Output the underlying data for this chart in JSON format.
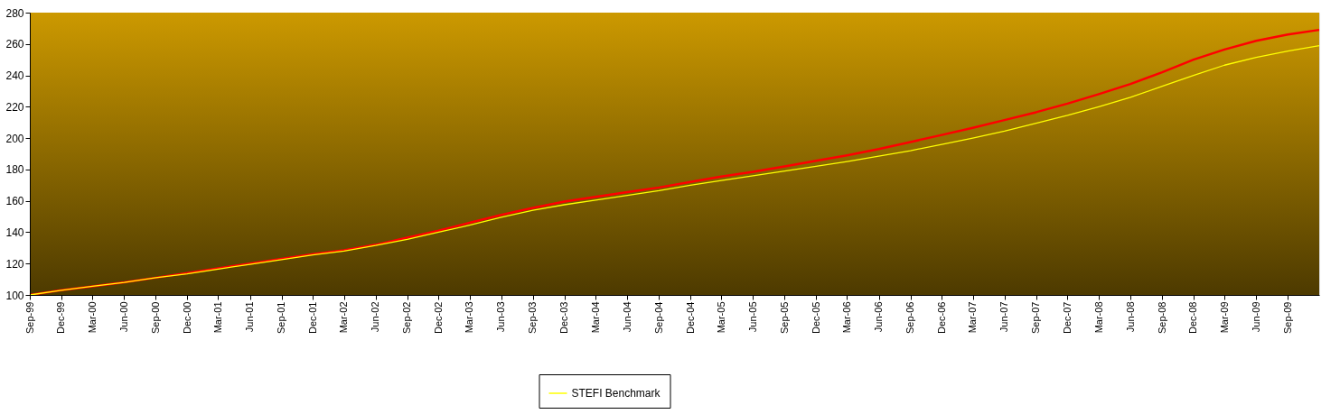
{
  "chart_data": {
    "type": "line",
    "x": [
      "1999-09",
      "1999-12",
      "2000-03",
      "2000-06",
      "2000-09",
      "2000-12",
      "2001-03",
      "2001-06",
      "2001-09",
      "2001-12",
      "2002-03",
      "2002-06",
      "2002-09",
      "2002-12",
      "2003-03",
      "2003-06",
      "2003-09",
      "2003-12",
      "2004-03",
      "2004-06",
      "2004-09",
      "2004-12",
      "2005-03",
      "2005-06",
      "2005-09",
      "2005-12",
      "2006-03",
      "2006-06",
      "2006-09",
      "2006-12",
      "2007-03",
      "2007-06",
      "2007-09",
      "2007-12",
      "2008-03",
      "2008-06",
      "2008-09",
      "2008-12",
      "2009-03",
      "2009-06",
      "2009-09",
      "2009-12"
    ],
    "series": [
      {
        "name": "STEFI Benchmark",
        "color": "#ffff00",
        "values": [
          100,
          103,
          105.5,
          108,
          111,
          113.5,
          116.5,
          119.5,
          122.5,
          125.5,
          128,
          131.5,
          135.5,
          140,
          144.5,
          149.5,
          154,
          157.5,
          160.5,
          163.5,
          166.5,
          170,
          173,
          176,
          179,
          182,
          185,
          188.5,
          192,
          196,
          200,
          204.5,
          209.5,
          214.5,
          220,
          226,
          233,
          240,
          246.5,
          251.5,
          255.5,
          259
        ]
      },
      {
        "color": "#ff0000",
        "values": [
          100,
          103,
          105.5,
          108,
          111,
          114,
          117,
          120,
          123,
          126,
          128.5,
          132,
          136.5,
          141,
          146,
          151,
          155.5,
          159.5,
          162.5,
          165.5,
          168.5,
          172,
          175.5,
          178.5,
          182,
          185.5,
          189,
          193,
          197.5,
          202,
          206.5,
          211.5,
          216.5,
          222,
          228,
          234.5,
          242,
          250,
          256.5,
          262,
          266,
          269
        ]
      }
    ],
    "xlim": [
      "1999-09",
      "2009-12"
    ],
    "xticks": [
      {
        "value": "1999-09",
        "label": "Sep-99"
      },
      {
        "value": "1999-12",
        "label": "Dec-99"
      },
      {
        "value": "2000-03",
        "label": "Mar-00"
      },
      {
        "value": "2000-06",
        "label": "Jun-00"
      },
      {
        "value": "2000-09",
        "label": "Sep-00"
      },
      {
        "value": "2000-12",
        "label": "Dec-00"
      },
      {
        "value": "2001-03",
        "label": "Mar-01"
      },
      {
        "value": "2001-06",
        "label": "Jun-01"
      },
      {
        "value": "2001-09",
        "label": "Sep-01"
      },
      {
        "value": "2001-12",
        "label": "Dec-01"
      },
      {
        "value": "2002-03",
        "label": "Mar-02"
      },
      {
        "value": "2002-06",
        "label": "Jun-02"
      },
      {
        "value": "2002-09",
        "label": "Sep-02"
      },
      {
        "value": "2002-12",
        "label": "Dec-02"
      },
      {
        "value": "2003-03",
        "label": "Mar-03"
      },
      {
        "value": "2003-06",
        "label": "Jun-03"
      },
      {
        "value": "2003-09",
        "label": "Sep-03"
      },
      {
        "value": "2003-12",
        "label": "Dec-03"
      },
      {
        "value": "2004-03",
        "label": "Mar-04"
      },
      {
        "value": "2004-06",
        "label": "Jun-04"
      },
      {
        "value": "2004-09",
        "label": "Sep-04"
      },
      {
        "value": "2004-12",
        "label": "Dec-04"
      },
      {
        "value": "2005-03",
        "label": "Mar-05"
      },
      {
        "value": "2005-06",
        "label": "Jun-05"
      },
      {
        "value": "2005-09",
        "label": "Sep-05"
      },
      {
        "value": "2005-12",
        "label": "Dec-05"
      },
      {
        "value": "2006-03",
        "label": "Mar-06"
      },
      {
        "value": "2006-06",
        "label": "Jun-06"
      },
      {
        "value": "2006-09",
        "label": "Sep-06"
      },
      {
        "value": "2006-12",
        "label": "Dec-06"
      },
      {
        "value": "2007-03",
        "label": "Mar-07"
      },
      {
        "value": "2007-06",
        "label": "Jun-07"
      },
      {
        "value": "2007-09",
        "label": "Sep-07"
      },
      {
        "value": "2007-12",
        "label": "Dec-07"
      },
      {
        "value": "2008-03",
        "label": "Mar-08"
      },
      {
        "value": "2008-06",
        "label": "Jun-08"
      },
      {
        "value": "2008-09",
        "label": "Sep-08"
      },
      {
        "value": "2008-12",
        "label": "Dec-08"
      },
      {
        "value": "2009-03",
        "label": "Mar-09"
      },
      {
        "value": "2009-06",
        "label": "Jun-09"
      },
      {
        "value": "2009-09",
        "label": "Sep-09"
      }
    ],
    "ylim": [
      100,
      280
    ],
    "yticks": [
      100,
      120,
      140,
      160,
      180,
      200,
      220,
      240,
      260,
      280
    ],
    "grid": false,
    "legend": "bottom",
    "marker": "none",
    "line_style": "solid"
  }
}
